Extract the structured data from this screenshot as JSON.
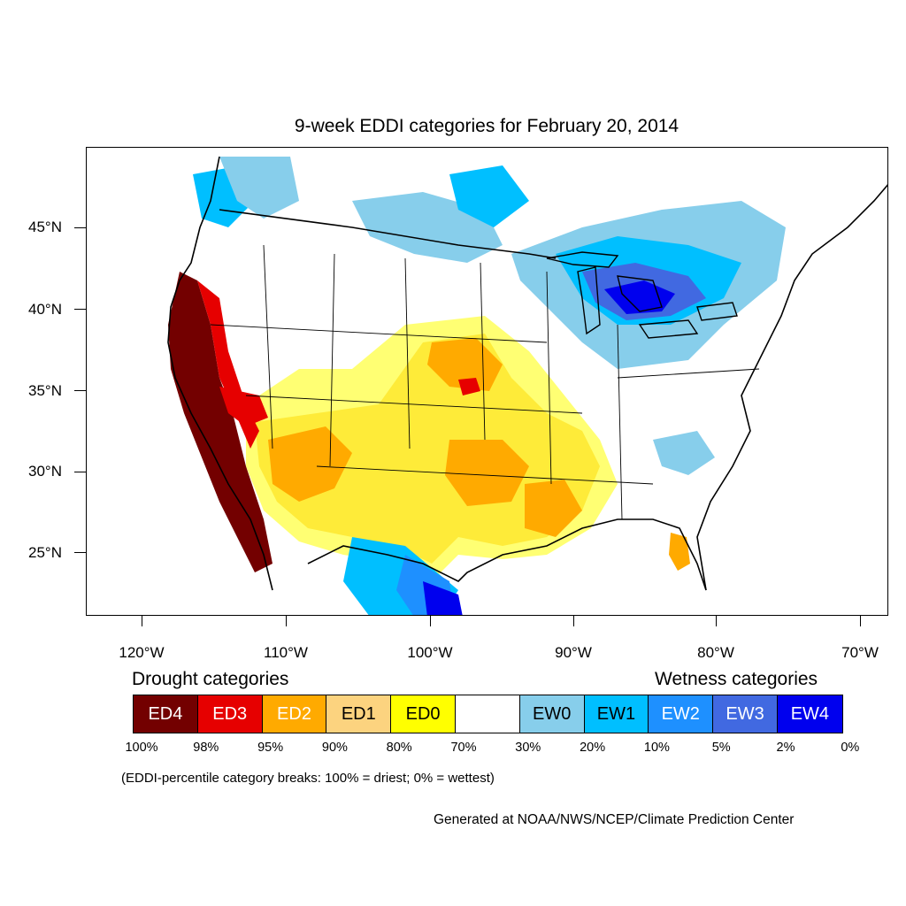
{
  "title": "9-week EDDI categories for February 20, 2014",
  "map": {
    "lat_labels": [
      "45°N",
      "40°N",
      "35°N",
      "30°N",
      "25°N"
    ],
    "lon_labels": [
      "120°W",
      "110°W",
      "100°W",
      "90°W",
      "80°W",
      "70°W"
    ]
  },
  "legend": {
    "drought_heading": "Drought categories",
    "wetness_heading": "Wetness categories",
    "categories": [
      {
        "label": "ED4",
        "color": "#730000",
        "text_color": "#ffffff"
      },
      {
        "label": "ED3",
        "color": "#e60000",
        "text_color": "#ffffff"
      },
      {
        "label": "ED2",
        "color": "#ffaa00",
        "text_color": "#ffffff"
      },
      {
        "label": "ED1",
        "color": "#fcd37f",
        "text_color": "#000000"
      },
      {
        "label": "ED0",
        "color": "#ffff00",
        "text_color": "#000000"
      },
      {
        "label": "",
        "color": "#ffffff",
        "text_color": "#000000"
      },
      {
        "label": "EW0",
        "color": "#87ceeb",
        "text_color": "#000000"
      },
      {
        "label": "EW1",
        "color": "#00bfff",
        "text_color": "#000000"
      },
      {
        "label": "EW2",
        "color": "#1e90ff",
        "text_color": "#ffffff"
      },
      {
        "label": "EW3",
        "color": "#4169e1",
        "text_color": "#ffffff"
      },
      {
        "label": "EW4",
        "color": "#0000ee",
        "text_color": "#ffffff"
      }
    ],
    "breaks": [
      "100%",
      "98%",
      "95%",
      "90%",
      "80%",
      "70%",
      "30%",
      "20%",
      "10%",
      "5%",
      "2%",
      "0%"
    ],
    "note": "(EDDI-percentile category breaks: 100% = driest; 0% = wettest)"
  },
  "credit": "Generated at NOAA/NWS/NCEP/Climate Prediction Center"
}
